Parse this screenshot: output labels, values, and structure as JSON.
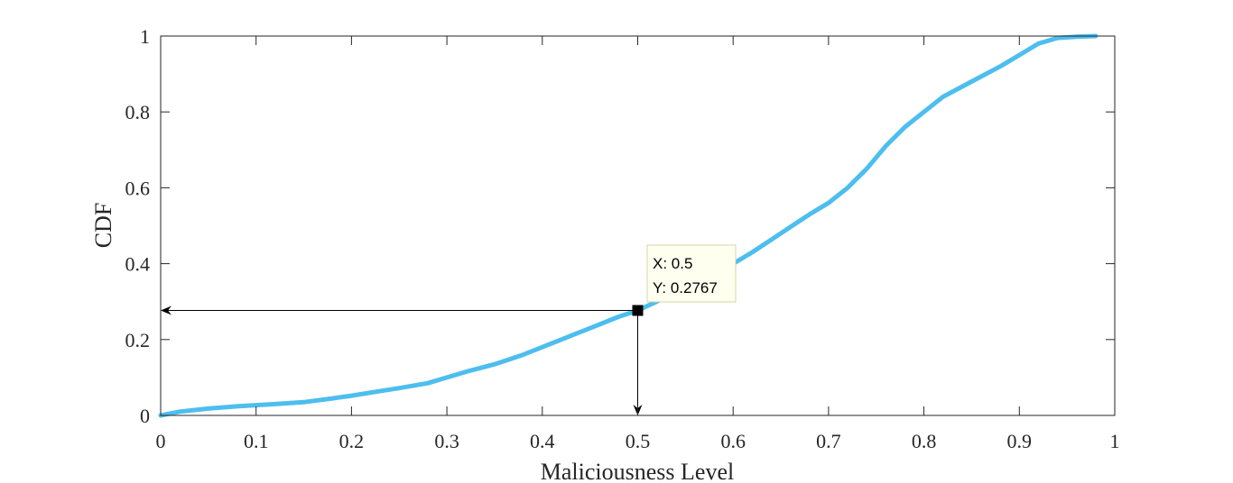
{
  "chart_data": {
    "type": "line",
    "title": "",
    "xlabel": "Maliciousness Level",
    "ylabel": "CDF",
    "xlim": [
      0,
      1
    ],
    "ylim": [
      0,
      1
    ],
    "grid": false,
    "x_ticks": [
      "0",
      "0.1",
      "0.2",
      "0.3",
      "0.4",
      "0.5",
      "0.6",
      "0.7",
      "0.8",
      "0.9",
      "1"
    ],
    "y_ticks": [
      "0",
      "0.2",
      "0.4",
      "0.6",
      "0.8",
      "1"
    ],
    "series": [
      {
        "color": "#4DBEEE",
        "x": [
          0,
          0.02,
          0.05,
          0.08,
          0.1,
          0.12,
          0.15,
          0.18,
          0.2,
          0.22,
          0.25,
          0.28,
          0.3,
          0.32,
          0.35,
          0.38,
          0.4,
          0.42,
          0.45,
          0.48,
          0.5,
          0.52,
          0.55,
          0.58,
          0.6,
          0.62,
          0.65,
          0.68,
          0.7,
          0.72,
          0.74,
          0.76,
          0.78,
          0.8,
          0.82,
          0.85,
          0.88,
          0.9,
          0.92,
          0.94,
          0.96,
          0.98
        ],
        "y": [
          0,
          0.01,
          0.018,
          0.024,
          0.027,
          0.03,
          0.035,
          0.045,
          0.052,
          0.06,
          0.072,
          0.085,
          0.1,
          0.115,
          0.135,
          0.16,
          0.18,
          0.2,
          0.23,
          0.26,
          0.2767,
          0.3,
          0.34,
          0.37,
          0.4,
          0.43,
          0.48,
          0.53,
          0.56,
          0.6,
          0.65,
          0.71,
          0.76,
          0.8,
          0.84,
          0.88,
          0.92,
          0.95,
          0.98,
          0.995,
          0.998,
          1.0
        ]
      }
    ],
    "marker": {
      "x": 0.5,
      "y": 0.2767
    },
    "datatip": {
      "x_text": "X: 0.5",
      "y_text": "Y: 0.2767",
      "background": "#FFFFF0",
      "border": "#D4D4A8"
    }
  }
}
